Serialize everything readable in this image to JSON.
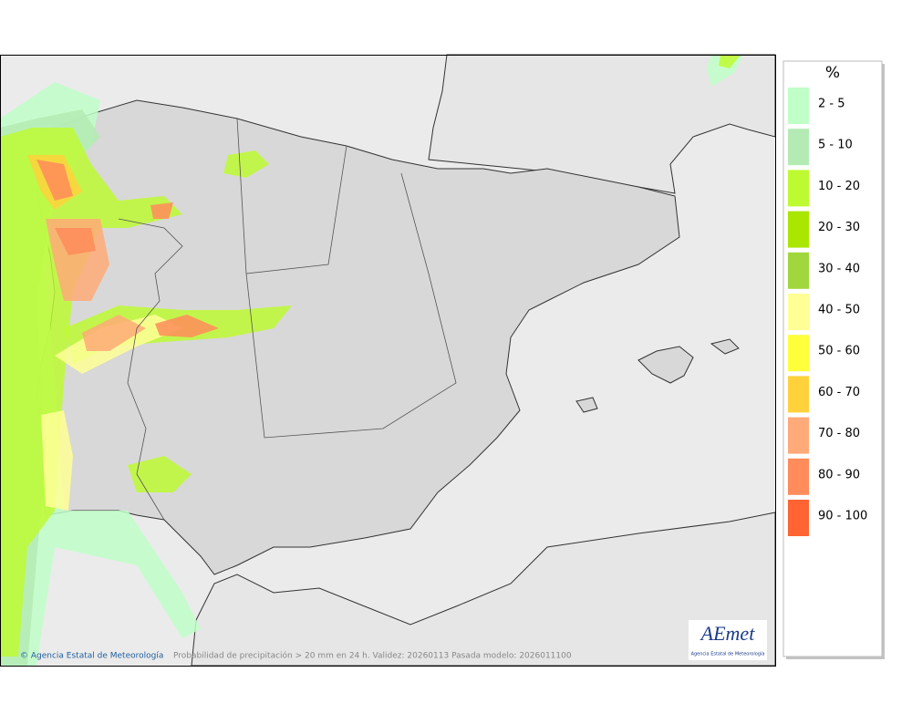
{
  "map": {
    "legend": {
      "title": "%",
      "items": [
        {
          "label": "2 - 5",
          "color": "#c0ffc8"
        },
        {
          "label": "5 - 10",
          "color": "#b4ebb4"
        },
        {
          "label": "10 - 20",
          "color": "#befa32"
        },
        {
          "label": "20 - 30",
          "color": "#aae600"
        },
        {
          "label": "30 - 40",
          "color": "#a0d73c"
        },
        {
          "label": "40 - 50",
          "color": "#ffff96"
        },
        {
          "label": "50 - 60",
          "color": "#ffff3c"
        },
        {
          "label": "60 - 70",
          "color": "#ffd23c"
        },
        {
          "label": "70 - 80",
          "color": "#ffaa78"
        },
        {
          "label": "80 - 90",
          "color": "#ff8c5a"
        },
        {
          "label": "90 - 100",
          "color": "#ff6432"
        }
      ]
    },
    "footer": {
      "credit": "© Agencia Estatal de Meteorología",
      "caption": "Probabilidad de precipitación > 20 mm en 24 h. Validez: 20260113 Pasada modelo: 2026011100"
    },
    "logo": {
      "name": "AEmet",
      "subtitle": "Agencia Estatal de Meteorología"
    }
  }
}
